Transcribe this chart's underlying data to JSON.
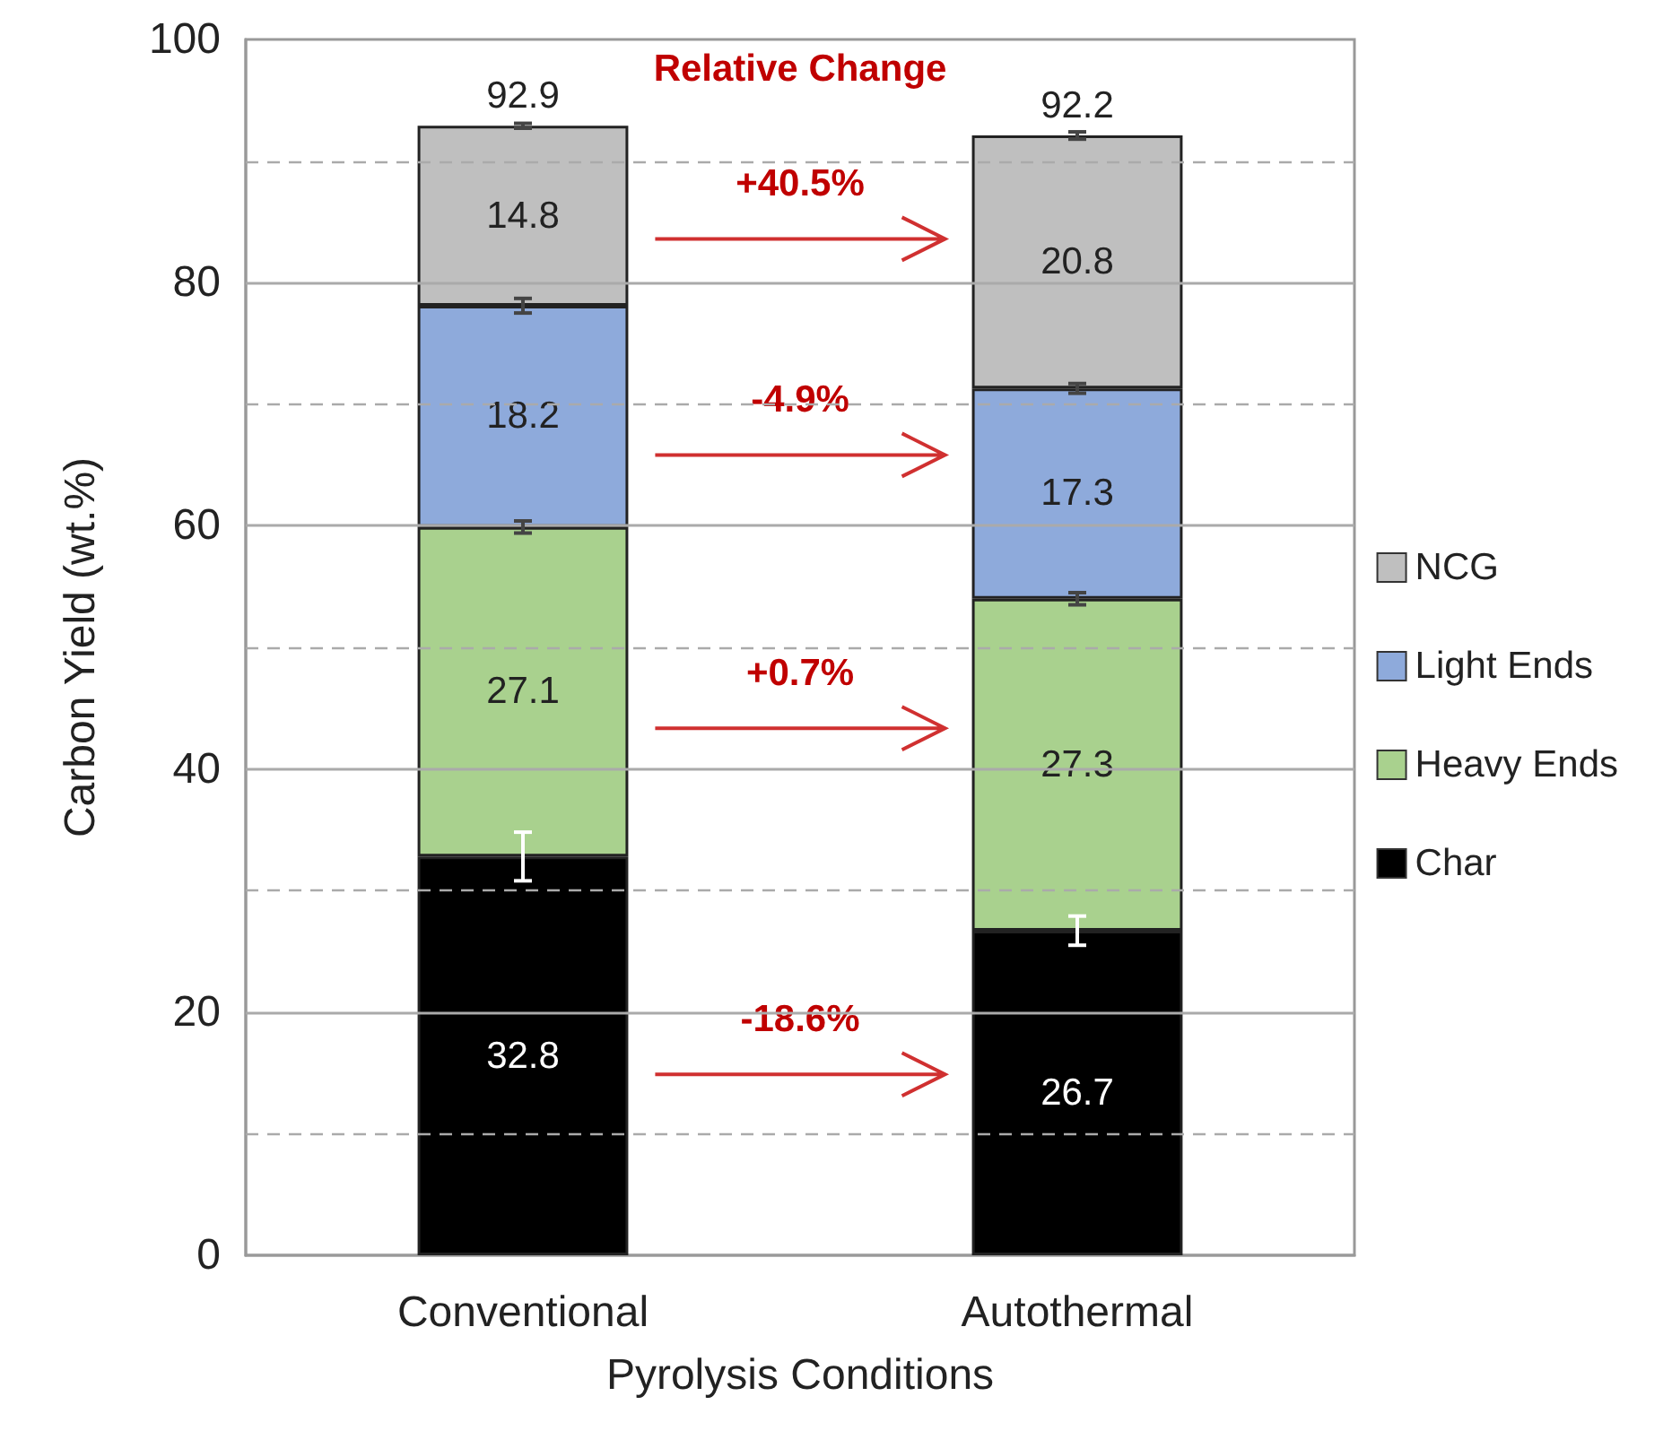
{
  "chart_data": {
    "type": "bar",
    "stacked": true,
    "xlabel": "Pyrolysis Conditions",
    "ylabel": "Carbon Yield (wt.%)",
    "categories": [
      "Conventional",
      "Autothermal"
    ],
    "series": [
      {
        "name": "Char",
        "color": "#000000",
        "values": [
          32.8,
          26.7
        ],
        "errors": [
          2,
          1.2
        ]
      },
      {
        "name": "Heavy Ends",
        "color": "#a9d18e",
        "values": [
          27.1,
          27.3
        ],
        "errors": [
          0.5,
          0.5
        ]
      },
      {
        "name": "Light Ends",
        "color": "#8eaadb",
        "values": [
          18.2,
          17.3
        ],
        "errors": [
          0.6,
          0.4
        ]
      },
      {
        "name": "NCG",
        "color": "#bfbfbf",
        "values": [
          14.8,
          20.8
        ],
        "errors": [
          0.2,
          0.3
        ]
      }
    ],
    "ylim": [
      0,
      100
    ],
    "yticks": [
      0,
      {
        "value": 10,
        "label": null
      },
      20,
      {
        "value": 30,
        "label": null
      },
      40,
      {
        "value": 50,
        "label": null
      },
      60,
      {
        "value": 70,
        "label": null
      },
      80,
      {
        "value": 90,
        "label": null
      },
      100
    ],
    "grid": "y",
    "legend": "right",
    "data_labels": true,
    "totals": [
      "92.9",
      "92.2"
    ],
    "annotations": [
      "Relative Change",
      "+40.5%",
      "-4.9%",
      "+0.7%",
      "-18.6%"
    ]
  }
}
